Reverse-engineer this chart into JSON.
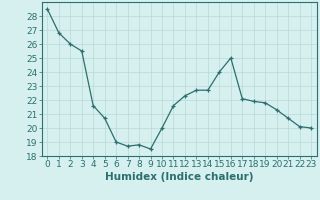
{
  "x_data": [
    0,
    1,
    2,
    3,
    4,
    5,
    6,
    7,
    8,
    9,
    10,
    11,
    12,
    13,
    14,
    15,
    16,
    17,
    18,
    19,
    20,
    21,
    22,
    23
  ],
  "y_data": [
    28.5,
    26.8,
    26.0,
    25.5,
    21.6,
    20.7,
    19.0,
    18.7,
    18.8,
    18.5,
    20.0,
    21.6,
    22.3,
    22.7,
    22.7,
    24.0,
    25.0,
    22.1,
    21.9,
    21.8,
    21.3,
    20.7,
    20.1,
    20.0
  ],
  "line_color": "#2d6e6e",
  "marker": "+",
  "bg_color": "#d6f0f0",
  "grid_color": "#b8d8d8",
  "xlabel": "Humidex (Indice chaleur)",
  "ylim": [
    18,
    29
  ],
  "xlim": [
    -0.5,
    23.5
  ],
  "yticks": [
    18,
    19,
    20,
    21,
    22,
    23,
    24,
    25,
    26,
    27,
    28
  ],
  "xticks": [
    0,
    1,
    2,
    3,
    4,
    5,
    6,
    7,
    8,
    9,
    10,
    11,
    12,
    13,
    14,
    15,
    16,
    17,
    18,
    19,
    20,
    21,
    22,
    23
  ],
  "xtick_labels": [
    "0",
    "1",
    "2",
    "3",
    "4",
    "5",
    "6",
    "7",
    "8",
    "9",
    "10",
    "11",
    "12",
    "13",
    "14",
    "15",
    "16",
    "17",
    "18",
    "19",
    "20",
    "21",
    "22",
    "23"
  ],
  "tick_fontsize": 6.5,
  "xlabel_fontsize": 7.5
}
